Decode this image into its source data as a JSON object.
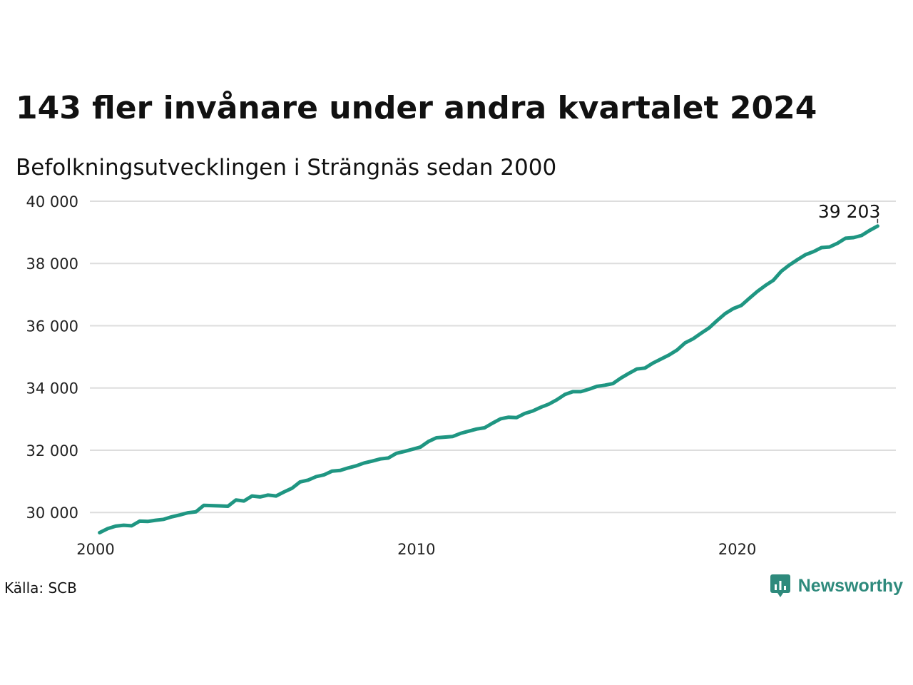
{
  "header": {
    "title": "143 fler invånare under andra kvartalet 2024",
    "subtitle": "Befolkningsutvecklingen i Strängnäs sedan 2000"
  },
  "footer": {
    "source": "Källa: SCB",
    "brand": "Newsworthy",
    "brand_icon": "newsworthy-logo-icon"
  },
  "colors": {
    "line": "#1f9682",
    "grid": "#dddddd",
    "brand": "#2e8a7c"
  },
  "chart_data": {
    "type": "line",
    "x_scale": "time",
    "xlim": [
      2000,
      2024.5
    ],
    "ylim": [
      29500,
      40000
    ],
    "y_ticks": [
      30000,
      32000,
      34000,
      36000,
      38000,
      40000
    ],
    "y_tick_labels": [
      "30 000",
      "32 000",
      "34 000",
      "36 000",
      "38 000",
      "40 000"
    ],
    "x_ticks": [
      2000,
      2010,
      2020
    ],
    "x_tick_labels": [
      "2000",
      "2010",
      "2020"
    ],
    "grid": "horizontal",
    "end_label": "39 203",
    "series": [
      {
        "x": [
          2000.125,
          2000.375,
          2000.625,
          2000.875,
          2001.125,
          2001.375,
          2001.625,
          2001.875,
          2002.125,
          2002.375,
          2002.625,
          2002.875,
          2003.125,
          2003.375,
          2003.625,
          2003.875,
          2004.125,
          2004.375,
          2004.625,
          2004.875,
          2005.125,
          2005.375,
          2005.625,
          2005.875,
          2006.125,
          2006.375,
          2006.625,
          2006.875,
          2007.125,
          2007.375,
          2007.625,
          2007.875,
          2008.125,
          2008.375,
          2008.625,
          2008.875,
          2009.125,
          2009.375,
          2009.625,
          2009.875,
          2010.125,
          2010.375,
          2010.625,
          2010.875,
          2011.125,
          2011.375,
          2011.625,
          2011.875,
          2012.125,
          2012.375,
          2012.625,
          2012.875,
          2013.125,
          2013.375,
          2013.625,
          2013.875,
          2014.125,
          2014.375,
          2014.625,
          2014.875,
          2015.125,
          2015.375,
          2015.625,
          2015.875,
          2016.125,
          2016.375,
          2016.625,
          2016.875,
          2017.125,
          2017.375,
          2017.625,
          2017.875,
          2018.125,
          2018.375,
          2018.625,
          2018.875,
          2019.125,
          2019.375,
          2019.625,
          2019.875,
          2020.125,
          2020.375,
          2020.625,
          2020.875,
          2021.125,
          2021.375,
          2021.625,
          2021.875,
          2022.125,
          2022.375,
          2022.625,
          2022.875,
          2023.125,
          2023.375,
          2023.625,
          2023.875,
          2024.125,
          2024.375
        ],
        "values": [
          29350,
          29480,
          29560,
          29590,
          29570,
          29720,
          29710,
          29750,
          29780,
          29860,
          29920,
          29990,
          30020,
          30230,
          30220,
          30210,
          30200,
          30400,
          30370,
          30530,
          30500,
          30560,
          30530,
          30660,
          30780,
          30980,
          31040,
          31150,
          31210,
          31330,
          31350,
          31430,
          31500,
          31590,
          31650,
          31720,
          31750,
          31900,
          31960,
          32030,
          32100,
          32280,
          32400,
          32420,
          32440,
          32540,
          32610,
          32680,
          32720,
          32870,
          33010,
          33060,
          33050,
          33180,
          33260,
          33380,
          33480,
          33620,
          33790,
          33880,
          33880,
          33960,
          34050,
          34090,
          34140,
          34320,
          34470,
          34610,
          34640,
          34800,
          34930,
          35060,
          35220,
          35450,
          35580,
          35760,
          35930,
          36170,
          36390,
          36550,
          36650,
          36880,
          37100,
          37290,
          37460,
          37750,
          37950,
          38120,
          38280,
          38380,
          38510,
          38530,
          38650,
          38810,
          38830,
          38900,
          39060,
          39203
        ]
      }
    ]
  }
}
